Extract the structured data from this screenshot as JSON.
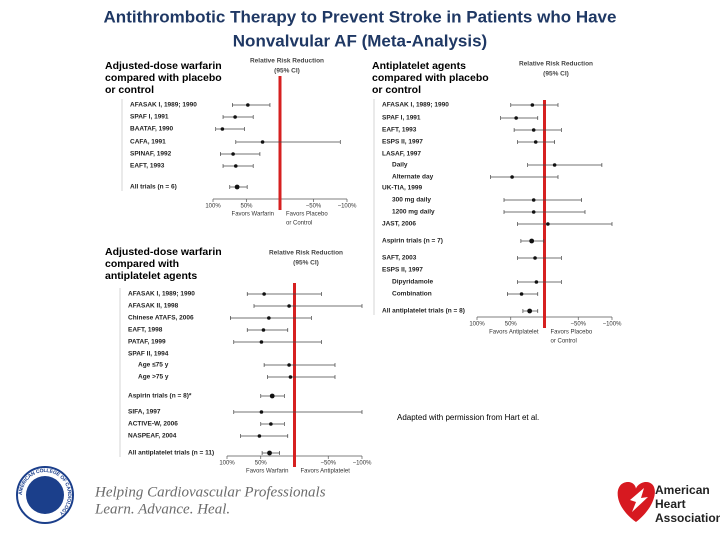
{
  "title": [
    "Antithrombotic Therapy to Prevent Stroke in Patients who Have",
    "Nonvalvular AF (Meta-Analysis)"
  ],
  "chart_data": [
    {
      "type": "forest",
      "heading": [
        "Adjusted-dose warfarin",
        "compared with placebo",
        "or control"
      ],
      "header": [
        "Relative Risk Reduction",
        "(95% CI)"
      ],
      "categories": [
        "AFASAK I, 1989; 1990",
        "SPAF I, 1991",
        "BAATAF, 1990",
        "CAFA, 1991",
        "SPINAF, 1992",
        "EAFT, 1993",
        "All trials (n = 6)"
      ],
      "values": [
        48,
        67,
        86,
        26,
        70,
        66,
        64
      ],
      "ci_high": [
        71,
        85,
        96,
        66,
        89,
        85,
        75
      ],
      "ci_low": [
        15,
        40,
        53,
        -90,
        30,
        40,
        49
      ],
      "xlim": [
        100,
        -100
      ],
      "xticks": [
        {
          "value": 100,
          "label": "100%"
        },
        {
          "value": 50,
          "label": "50%"
        },
        0,
        {
          "value": -50,
          "label": "−50%"
        },
        {
          "value": -100,
          "label": "−100%"
        }
      ],
      "x_labels": [
        [
          "Favors Warfarin"
        ],
        [
          "Favors Placebo",
          "or Control"
        ]
      ]
    },
    {
      "type": "forest",
      "heading": [
        "Antiplatelet agents",
        "compared with placebo",
        "or control"
      ],
      "header": [
        "Relative Risk Reduction",
        "(95% CI)"
      ],
      "categories": [
        "AFASAK I, 1989; 1990",
        "SPAF I, 1991",
        "EAFT, 1993",
        "ESPS II, 1997",
        "LASAF, 1997",
        "Daily",
        "Alternate day",
        "UK-TIA, 1999",
        "300 mg daily",
        "1200 mg daily",
        "JAST, 2006",
        "Aspirin trials (n = 7)",
        "SAFT, 2003",
        "ESPS II, 1997",
        "Dipyridamole",
        "Combination",
        "All antiplatelet trials (n = 8)"
      ],
      "values": [
        18,
        42,
        16,
        13,
        null,
        -15,
        48,
        null,
        16,
        16,
        -5,
        19,
        14,
        null,
        12,
        34,
        22
      ],
      "ci_high": [
        50,
        65,
        45,
        40,
        null,
        25,
        80,
        null,
        60,
        60,
        40,
        35,
        40,
        null,
        40,
        55,
        32
      ],
      "ci_low": [
        -20,
        10,
        -25,
        -15,
        null,
        -85,
        -20,
        null,
        -55,
        -60,
        -100,
        1,
        -25,
        null,
        -25,
        10,
        10
      ],
      "xlim": [
        100,
        -100
      ],
      "xticks": [
        {
          "value": 100,
          "label": "100%"
        },
        {
          "value": 50,
          "label": "50%"
        },
        0,
        {
          "value": -50,
          "label": "−50%"
        },
        {
          "value": -100,
          "label": "−100%"
        }
      ],
      "x_labels": [
        [
          "Favors Antiplatelet"
        ],
        [
          "Favors Placebo",
          "or Control"
        ]
      ]
    },
    {
      "type": "forest",
      "heading": [
        "Adjusted-dose warfarin",
        "compared with",
        "antiplatelet agents"
      ],
      "header": [
        "Relative Risk Reduction",
        "(95% CI)"
      ],
      "categories": [
        "AFASAK I, 1989; 1990",
        "AFASAK II, 1998",
        "Chinese ATAFS, 2006",
        "EAFT, 1998",
        "PATAF, 1999",
        "SPAF II, 1994",
        "Age ≤75 y",
        "Age >75 y",
        "Aspirin trials (n = 8)*",
        "SIFA, 1997",
        "ACTIVE-W, 2006",
        "NASPEAF, 2004",
        "All antiplatelet trials (n = 11)"
      ],
      "values": [
        45,
        8,
        38,
        46,
        49,
        null,
        8,
        6,
        33,
        49,
        35,
        52,
        37
      ],
      "ci_high": [
        70,
        60,
        95,
        70,
        90,
        null,
        45,
        40,
        50,
        90,
        50,
        80,
        48
      ],
      "ci_low": [
        -40,
        -100,
        -25,
        10,
        -40,
        null,
        -60,
        -60,
        15,
        -100,
        15,
        10,
        22
      ],
      "xlim": [
        100,
        -100
      ],
      "xticks": [
        {
          "value": 100,
          "label": "100%"
        },
        {
          "value": 50,
          "label": "50%"
        },
        0,
        {
          "value": -50,
          "label": "−50%"
        },
        {
          "value": -100,
          "label": "−100%"
        }
      ],
      "x_labels": [
        [
          "Favors Warfarin"
        ],
        [
          "Favors Antiplatelet"
        ]
      ]
    }
  ],
  "note": "Adapted with permission from Hart et al.",
  "acc": {
    "seal": "AMERICAN COLLEGE OF CARDIOLOGY",
    "lines": [
      "Helping Cardiovascular Professionals",
      "Learn. Advance. Heal."
    ]
  },
  "aha": [
    "American",
    "Heart",
    "Association."
  ]
}
